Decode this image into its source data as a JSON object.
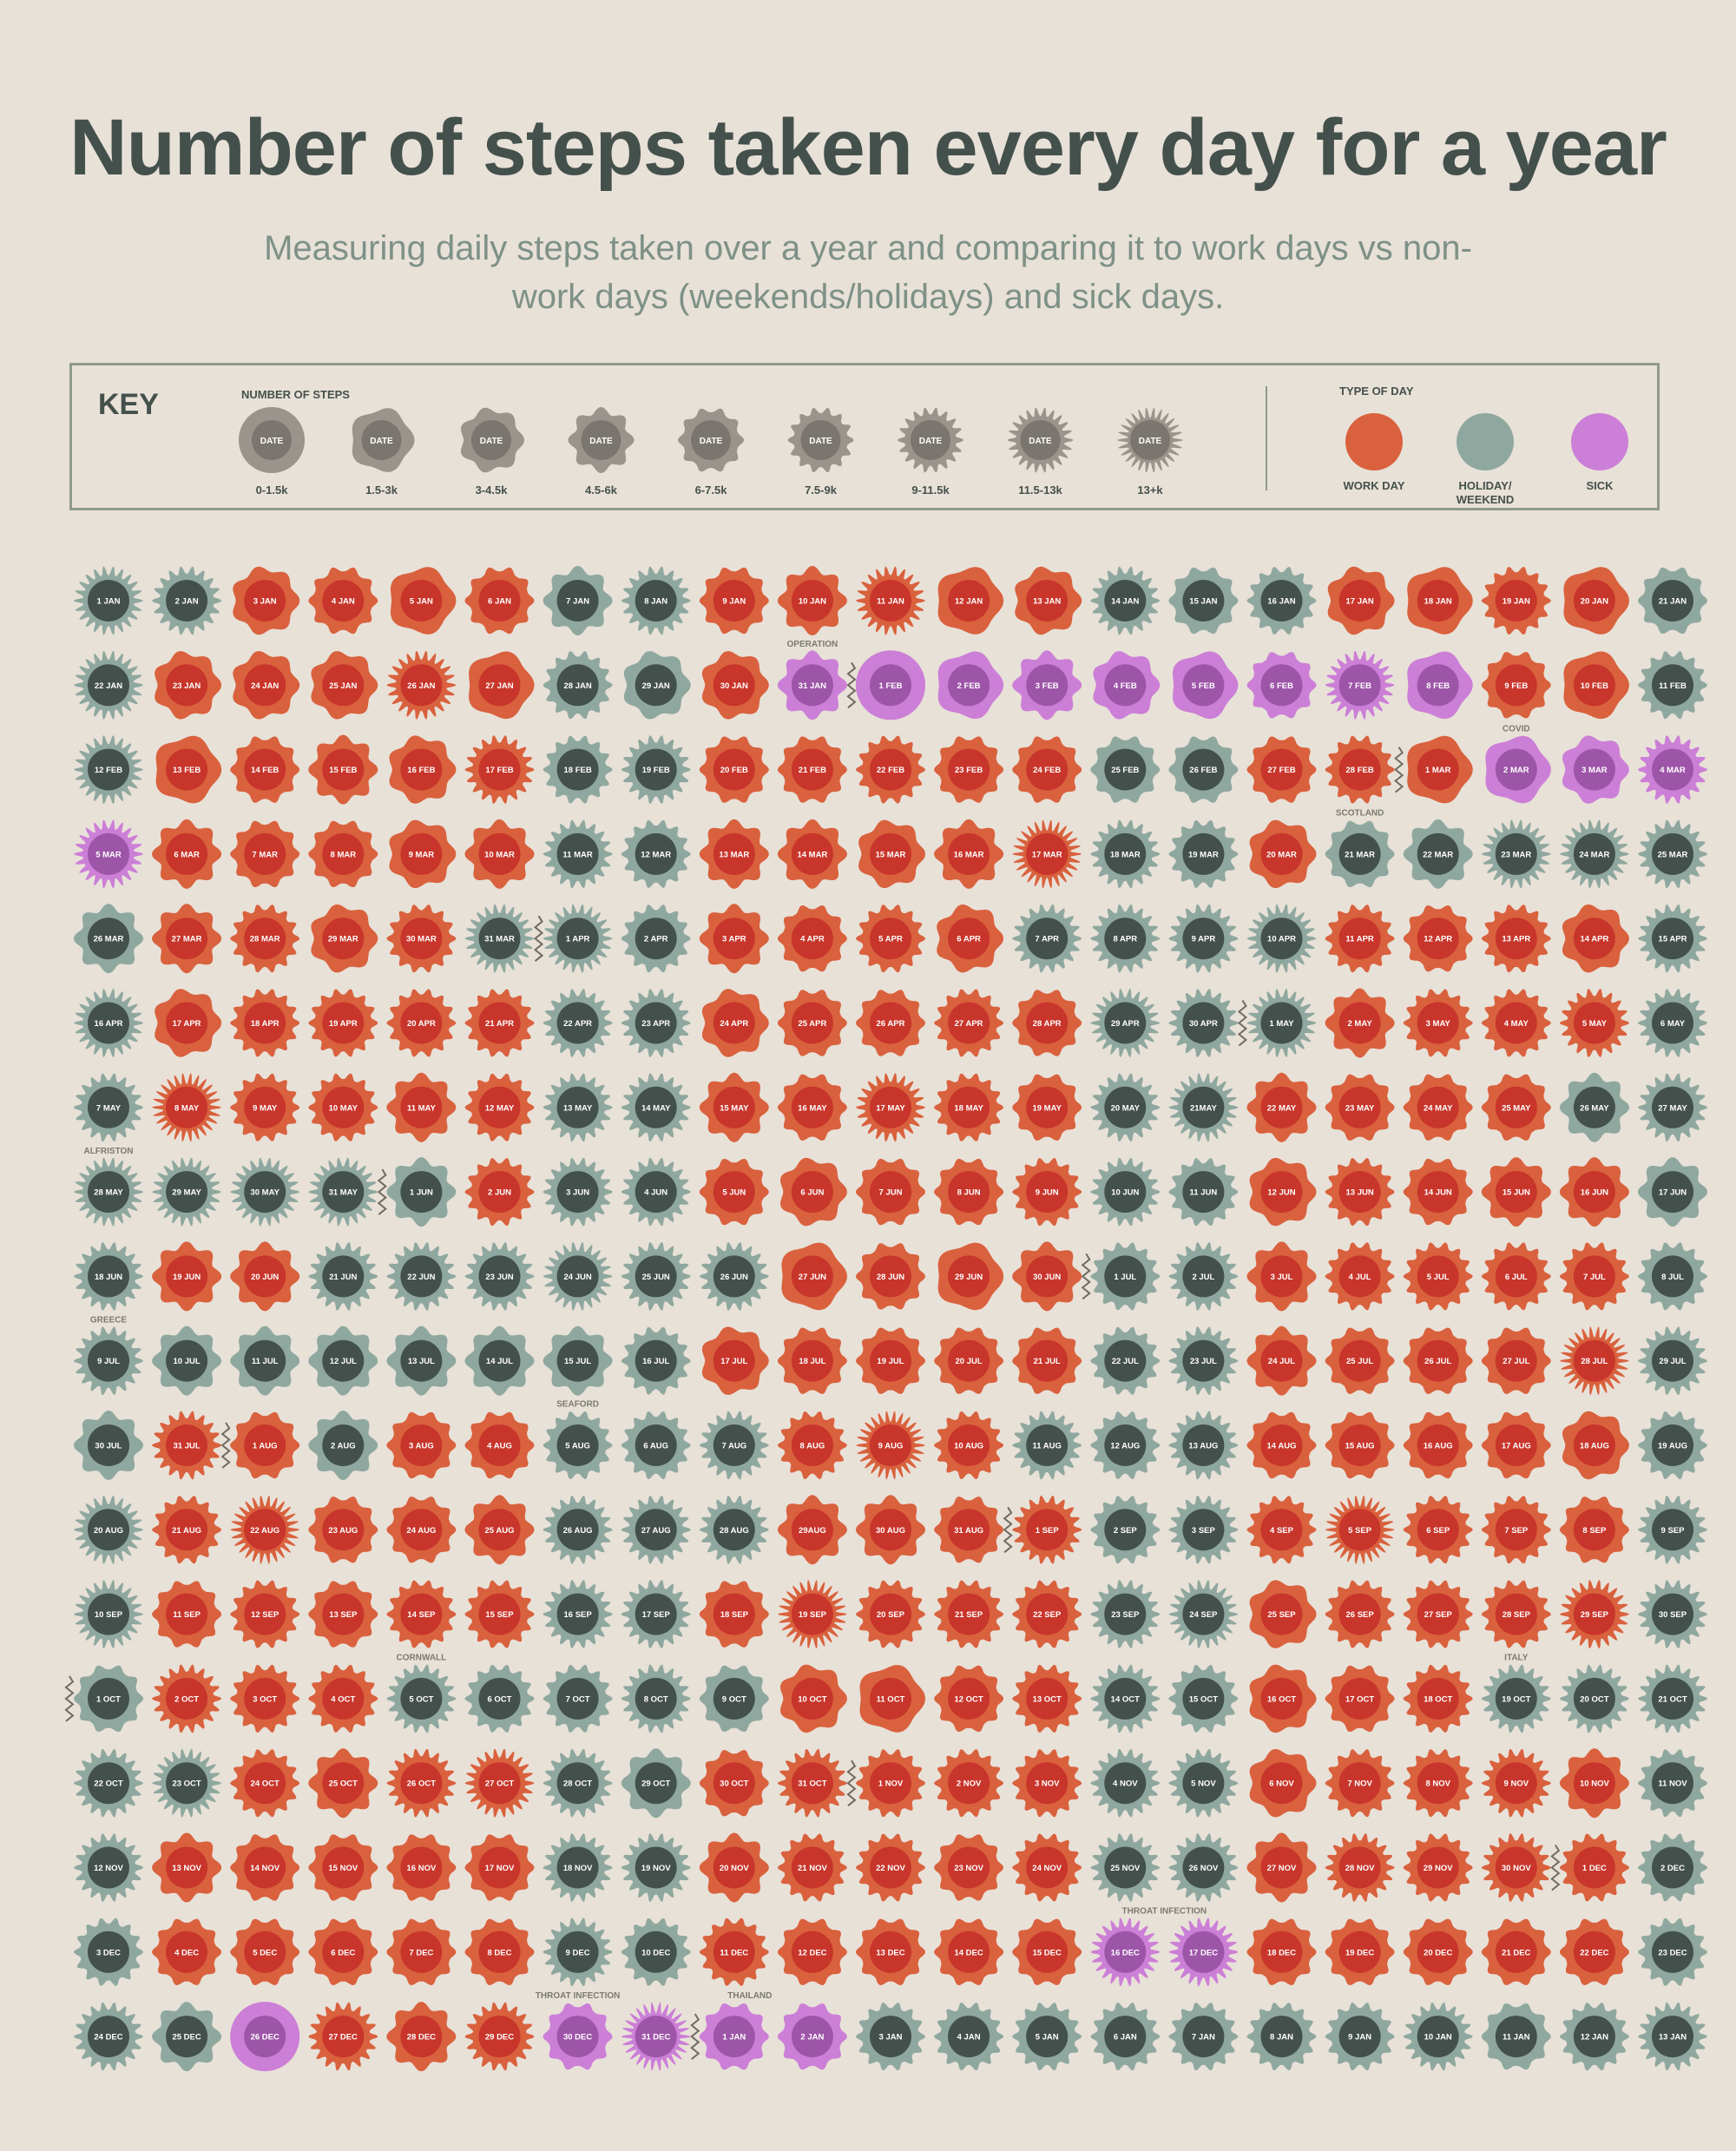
{
  "header": {
    "title": "Number of steps taken every day for a year",
    "subtitle": "Measuring daily steps taken over a year and comparing it to work days vs non-work days (weekends/holidays) and sick days."
  },
  "key": {
    "title": "KEY",
    "steps_title": "NUMBER OF STEPS",
    "badge_text": "DATE",
    "bins": [
      "0-1.5k",
      "1.5-3k",
      "3-4.5k",
      "4.5-6k",
      "6-7.5k",
      "7.5-9k",
      "9-11.5k",
      "11.5-13k",
      "13+k"
    ],
    "type_title": "TYPE OF DAY",
    "types": [
      {
        "label": "WORK DAY",
        "color": "#d9613d"
      },
      {
        "label": "HOLIDAY/ WEEKEND",
        "color": "#8fa89f"
      },
      {
        "label": "SICK",
        "color": "#cc7fd6"
      }
    ]
  },
  "colors": {
    "background": "#e8e1d8",
    "work_outer": "#d9613d",
    "work_inner": "#c8352b",
    "holiday_outer": "#8fa89f",
    "holiday_inner": "#44504b",
    "sick_outer": "#cc7fd6",
    "sick_inner": "#9d55a8",
    "key_outer": "#9a948c",
    "key_inner": "#7b756f"
  },
  "chart_data": {
    "type": "table",
    "columns": 21,
    "level_encoding": "0=0-1.5k,1=1.5-3k,2=3-4.5k,3=4.5-6k,4=6-7.5k,5=7.5-9k,6=9-11.5k,7=11.5-13k,8=13+k",
    "type_encoding": "W=work day, H=holiday/weekend, S=sick",
    "rows": [
      {
        "labels": [
          "1 JAN",
          "2 JAN",
          "3 JAN",
          "4 JAN",
          "5 JAN",
          "6 JAN",
          "7 JAN",
          "8 JAN",
          "9 JAN",
          "10 JAN",
          "11 JAN",
          "12 JAN",
          "13 JAN",
          "14 JAN",
          "15 JAN",
          "16 JAN",
          "17 JAN",
          "18 JAN",
          "19 JAN",
          "20 JAN",
          "21 JAN"
        ],
        "types": "HHWWWWHHWWWWWHHHWWWWH",
        "levels": [
          7,
          6,
          2,
          4,
          1,
          4,
          3,
          6,
          4,
          3,
          7,
          1,
          2,
          6,
          4,
          5,
          2,
          1,
          5,
          1,
          4
        ]
      },
      {
        "labels": [
          "22 JAN",
          "23 JAN",
          "24 JAN",
          "25 JAN",
          "26 JAN",
          "27 JAN",
          "28 JAN",
          "29 JAN",
          "30 JAN",
          "31 JAN",
          "1 FEB",
          "2 FEB",
          "3 FEB",
          "4 FEB",
          "5 FEB",
          "6 FEB",
          "7 FEB",
          "8 FEB",
          "9 FEB",
          "10 FEB",
          "11 FEB"
        ],
        "types": "HWWWWWHHWSSSSSSSSSWWH",
        "levels": [
          7,
          2,
          2,
          2,
          7,
          1,
          5,
          2,
          2,
          3,
          0,
          1,
          3,
          2,
          1,
          4,
          7,
          1,
          4,
          1,
          5
        ]
      },
      {
        "labels": [
          "12 FEB",
          "13 FEB",
          "14 FEB",
          "15 FEB",
          "16 FEB",
          "17 FEB",
          "18 FEB",
          "19 FEB",
          "20 FEB",
          "21 FEB",
          "22 FEB",
          "23 FEB",
          "24 FEB",
          "25 FEB",
          "26 FEB",
          "27 FEB",
          "28 FEB",
          "1 MAR",
          "2 MAR",
          "3 MAR",
          "4 MAR"
        ],
        "types": "HWWWWWHHWWWWWHHWWWSSS",
        "levels": [
          7,
          1,
          4,
          3,
          2,
          6,
          5,
          6,
          4,
          4,
          5,
          4,
          4,
          4,
          4,
          4,
          5,
          1,
          1,
          2,
          6
        ]
      },
      {
        "labels": [
          "5 MAR",
          "6 MAR",
          "7 MAR",
          "8 MAR",
          "9 MAR",
          "10 MAR",
          "11 MAR",
          "12 MAR",
          "13 MAR",
          "14 MAR",
          "15 MAR",
          "16 MAR",
          "17 MAR",
          "18 MAR",
          "19 MAR",
          "20 MAR",
          "21 MAR",
          "22 MAR",
          "23 MAR",
          "24 MAR",
          "25 MAR"
        ],
        "types": "SWWWWWHHWWWWWHHWHHHHH",
        "levels": [
          7,
          3,
          4,
          4,
          2,
          3,
          6,
          5,
          3,
          3,
          2,
          3,
          8,
          6,
          5,
          2,
          4,
          3,
          7,
          7,
          6
        ]
      },
      {
        "labels": [
          "26 MAR",
          "27 MAR",
          "28 MAR",
          "29 MAR",
          "30 MAR",
          "31 MAR",
          "1 APR",
          "2 APR",
          "3 APR",
          "4 APR",
          "5 APR",
          "6 APR",
          "7 APR",
          "8 APR",
          "9 APR",
          "10 APR",
          "11 APR",
          "12 APR",
          "13 APR",
          "14 APR",
          "15 APR"
        ],
        "types": "HWWWWHHHWWWWHHHHWWWWH",
        "levels": [
          3,
          3,
          5,
          2,
          5,
          7,
          7,
          5,
          3,
          4,
          5,
          2,
          6,
          6,
          6,
          7,
          5,
          4,
          5,
          2,
          6
        ]
      },
      {
        "labels": [
          "16 APR",
          "17 APR",
          "18 APR",
          "19 APR",
          "20 APR",
          "21 APR",
          "22 APR",
          "23 APR",
          "24 APR",
          "25 APR",
          "26 APR",
          "27 APR",
          "28 APR",
          "29 APR",
          "30 APR",
          "1 MAY",
          "2 MAY",
          "3 MAY",
          "4 MAY",
          "5 MAY",
          "6 MAY"
        ],
        "types": "HWWWWWHHWWWWWHHHWWWWH",
        "levels": [
          7,
          2,
          5,
          5,
          5,
          5,
          6,
          6,
          2,
          4,
          4,
          5,
          4,
          7,
          6,
          7,
          3,
          5,
          5,
          6,
          6
        ]
      },
      {
        "labels": [
          "7 MAY",
          "8 MAY",
          "9 MAY",
          "10 MAY",
          "11 MAY",
          "12 MAY",
          "13 MAY",
          "14 MAY",
          "15 MAY",
          "16 MAY",
          "17 MAY",
          "18 MAY",
          "19 MAY",
          "20 MAY",
          "21MAY",
          "22 MAY",
          "23 MAY",
          "24 MAY",
          "25 MAY",
          "26 MAY",
          "27 MAY"
        ],
        "types": "HWWWWWHHWWWWWHHWWWWHH",
        "levels": [
          6,
          8,
          5,
          5,
          3,
          5,
          6,
          6,
          3,
          4,
          7,
          5,
          4,
          6,
          7,
          3,
          4,
          4,
          4,
          3,
          6
        ]
      },
      {
        "labels": [
          "28 MAY",
          "29 MAY",
          "30 MAY",
          "31 MAY",
          "1 JUN",
          "2 JUN",
          "3 JUN",
          "4 JUN",
          "5 JUN",
          "6 JUN",
          "7 JUN",
          "8 JUN",
          "9 JUN",
          "10 JUN",
          "11 JUN",
          "12 JUN",
          "13 JUN",
          "14 JUN",
          "15 JUN",
          "16 JUN",
          "17 JUN"
        ],
        "types": "HHHHHWHHWWWWWHHWWWWWH",
        "levels": [
          7,
          7,
          7,
          7,
          3,
          5,
          6,
          6,
          4,
          2,
          4,
          4,
          5,
          6,
          5,
          2,
          5,
          4,
          3,
          3,
          3
        ]
      },
      {
        "labels": [
          "18 JUN",
          "19 JUN",
          "20 JUN",
          "21 JUN",
          "22 JUN",
          "23 JUN",
          "24 JUN",
          "25 JUN",
          "26 JUN",
          "27 JUN",
          "28 JUN",
          "29 JUN",
          "30 JUN",
          "1 JUL",
          "2 JUL",
          "3 JUL",
          "4 JUL",
          "5 JUL",
          "6 JUL",
          "7 JUL",
          "8 JUL"
        ],
        "types": "HWWHHHHHHWWWWHHWWWWWH",
        "levels": [
          6,
          3,
          3,
          6,
          6,
          6,
          7,
          6,
          6,
          1,
          4,
          1,
          3,
          5,
          6,
          3,
          5,
          5,
          5,
          5,
          5
        ]
      },
      {
        "labels": [
          "9 JUL",
          "10 JUL",
          "11 JUL",
          "12 JUL",
          "13 JUL",
          "14 JUL",
          "15 JUL",
          "16 JUL",
          "17 JUL",
          "18 JUL",
          "19 JUL",
          "20 JUL",
          "21 JUL",
          "22 JUL",
          "23 JUL",
          "24 JUL",
          "25 JUL",
          "26 JUL",
          "27 JUL",
          "28 JUL",
          "29 JUL"
        ],
        "types": "HHHHHHHHWWWWWHHWWWWWH",
        "levels": [
          6,
          3,
          3,
          3,
          3,
          3,
          3,
          5,
          2,
          4,
          4,
          4,
          4,
          5,
          6,
          3,
          4,
          4,
          4,
          8,
          6
        ]
      },
      {
        "labels": [
          "30 JUL",
          "31 JUL",
          "1 AUG",
          "2 AUG",
          "3 AUG",
          "4 AUG",
          "5 AUG",
          "6 AUG",
          "7 AUG",
          "8 AUG",
          "9 AUG",
          "10 AUG",
          "11 AUG",
          "12 AUG",
          "13 AUG",
          "14 AUG",
          "15 AUG",
          "16 AUG",
          "17 AUG",
          "18 AUG",
          "19 AUG"
        ],
        "types": "HWWHWWHHHWWWHHHWWWWWH",
        "levels": [
          3,
          6,
          4,
          3,
          4,
          4,
          5,
          5,
          6,
          5,
          8,
          5,
          6,
          5,
          6,
          4,
          4,
          4,
          4,
          2,
          5
        ]
      },
      {
        "labels": [
          "20 AUG",
          "21 AUG",
          "22 AUG",
          "23 AUG",
          "24 AUG",
          "25 AUG",
          "26 AUG",
          "27 AUG",
          "28 AUG",
          "29AUG",
          "30 AUG",
          "31 AUG",
          "1 SEP",
          "2 SEP",
          "3 SEP",
          "4 SEP",
          "5 SEP",
          "6 SEP",
          "7 SEP",
          "8 SEP",
          "9 SEP"
        ],
        "types": "HWWWWWHHHWWWWHHWWWWWH",
        "levels": [
          7,
          5,
          8,
          4,
          4,
          3,
          6,
          6,
          6,
          3,
          3,
          4,
          6,
          5,
          6,
          5,
          8,
          5,
          5,
          4,
          6
        ]
      },
      {
        "labels": [
          "10 SEP",
          "11 SEP",
          "12 SEP",
          "13 SEP",
          "14 SEP",
          "15 SEP",
          "16 SEP",
          "17 SEP",
          "18 SEP",
          "19 SEP",
          "20 SEP",
          "21 SEP",
          "22 SEP",
          "23 SEP",
          "24 SEP",
          "25 SEP",
          "26 SEP",
          "27 SEP",
          "28 SEP",
          "29 SEP",
          "30 SEP"
        ],
        "types": "HWWWWWHHWWWWWHHWWWWWH",
        "levels": [
          7,
          4,
          5,
          4,
          5,
          5,
          6,
          6,
          4,
          8,
          5,
          5,
          5,
          6,
          7,
          2,
          5,
          5,
          5,
          7,
          6
        ]
      },
      {
        "labels": [
          "1 OCT",
          "2 OCT",
          "3 OCT",
          "4 OCT",
          "5 OCT",
          "6 OCT",
          "7 OCT",
          "8 OCT",
          "9 OCT",
          "10 OCT",
          "11 OCT",
          "12 OCT",
          "13 OCT",
          "14 OCT",
          "15 OCT",
          "16 OCT",
          "17 OCT",
          "18 OCT",
          "19 OCT",
          "20 OCT",
          "21 OCT"
        ],
        "types": "HWWWHHHHHWWWWHHWWWHHH",
        "levels": [
          4,
          6,
          5,
          5,
          6,
          5,
          5,
          6,
          4,
          2,
          1,
          4,
          5,
          6,
          5,
          2,
          4,
          5,
          6,
          6,
          6
        ]
      },
      {
        "labels": [
          "22 OCT",
          "23 OCT",
          "24 OCT",
          "25 OCT",
          "26 OCT",
          "27 OCT",
          "28 OCT",
          "29 OCT",
          "30 OCT",
          "31 OCT",
          "1 NOV",
          "2 NOV",
          "3 NOV",
          "4 NOV",
          "5 NOV",
          "6 NOV",
          "7 NOV",
          "8 NOV",
          "9 NOV",
          "10 NOV",
          "11 NOV"
        ],
        "types": "HHWWWWHHWWWWWHHWWWWWH",
        "levels": [
          6,
          7,
          5,
          3,
          6,
          7,
          6,
          3,
          4,
          6,
          5,
          5,
          5,
          6,
          6,
          2,
          5,
          5,
          6,
          3,
          5
        ]
      },
      {
        "labels": [
          "12 NOV",
          "13 NOV",
          "14 NOV",
          "15 NOV",
          "16 NOV",
          "17 NOV",
          "18 NOV",
          "19 NOV",
          "20 NOV",
          "21 NOV",
          "22 NOV",
          "23 NOV",
          "24 NOV",
          "25 NOV",
          "26 NOV",
          "27 NOV",
          "28 NOV",
          "29 NOV",
          "30 NOV",
          "1 DEC",
          "2 DEC"
        ],
        "types": "HWWWWWHHWWWWWHHWWWWWH",
        "levels": [
          6,
          3,
          4,
          4,
          4,
          4,
          6,
          6,
          3,
          5,
          5,
          4,
          5,
          6,
          6,
          3,
          6,
          5,
          6,
          5,
          5
        ]
      },
      {
        "labels": [
          "3 DEC",
          "4 DEC",
          "5 DEC",
          "6 DEC",
          "7 DEC",
          "8 DEC",
          "9 DEC",
          "10 DEC",
          "11 DEC",
          "12 DEC",
          "13 DEC",
          "14 DEC",
          "15 DEC",
          "16 DEC",
          "17 DEC",
          "18 DEC",
          "19 DEC",
          "20 DEC",
          "21 DEC",
          "22 DEC",
          "23 DEC"
        ],
        "types": "HWWWWWHHWWWWWSSWWWWWH",
        "levels": [
          5,
          4,
          4,
          4,
          4,
          4,
          6,
          5,
          5,
          4,
          4,
          4,
          4,
          7,
          7,
          4,
          4,
          4,
          4,
          4,
          5
        ]
      },
      {
        "labels": [
          "24 DEC",
          "25 DEC",
          "26 DEC",
          "27 DEC",
          "28 DEC",
          "29 DEC",
          "30 DEC",
          "31 DEC",
          "1 JAN",
          "2 JAN",
          "3 JAN",
          "4 JAN",
          "5 JAN",
          "6 JAN",
          "7 JAN",
          "8 JAN",
          "9 JAN",
          "10 JAN",
          "11 JAN",
          "12 JAN",
          "13 JAN"
        ],
        "types": "HHSWWWSSSSHHHHHHHHHHH",
        "levels": [
          6,
          3,
          0,
          6,
          3,
          6,
          4,
          8,
          4,
          4,
          5,
          5,
          5,
          5,
          5,
          5,
          5,
          6,
          4,
          5,
          6
        ]
      }
    ],
    "annotations": [
      {
        "text": "OPERATION",
        "row": 0,
        "col": 9
      },
      {
        "text": "COVID",
        "row": 1,
        "col": 18
      },
      {
        "text": "SCOTLAND",
        "row": 2,
        "col": 16
      },
      {
        "text": "ALFRISTON",
        "row": 6,
        "col": 0
      },
      {
        "text": "GREECE",
        "row": 8,
        "col": 0
      },
      {
        "text": "SEAFORD",
        "row": 9,
        "col": 6
      },
      {
        "text": "CORNWALL",
        "row": 12,
        "col": 4
      },
      {
        "text": "ITALY",
        "row": 12,
        "col": 18
      },
      {
        "text": "THROAT INFECTION",
        "row": 15,
        "col": 13.5
      },
      {
        "text": "THROAT INFECTION",
        "row": 16,
        "col": 6
      },
      {
        "text": "THAILAND",
        "row": 16,
        "col": 8.2
      }
    ],
    "month_breaks": [
      {
        "row": 1,
        "after_col": 9
      },
      {
        "row": 2,
        "after_col": 16
      },
      {
        "row": 4,
        "after_col": 5
      },
      {
        "row": 5,
        "after_col": 14
      },
      {
        "row": 7,
        "after_col": 3
      },
      {
        "row": 8,
        "after_col": 12
      },
      {
        "row": 10,
        "after_col": 1
      },
      {
        "row": 11,
        "after_col": 11
      },
      {
        "row": 13,
        "before_col": 0
      },
      {
        "row": 14,
        "after_col": 9
      },
      {
        "row": 15,
        "after_col": 18
      },
      {
        "row": 17,
        "after_col": 7
      }
    ]
  }
}
